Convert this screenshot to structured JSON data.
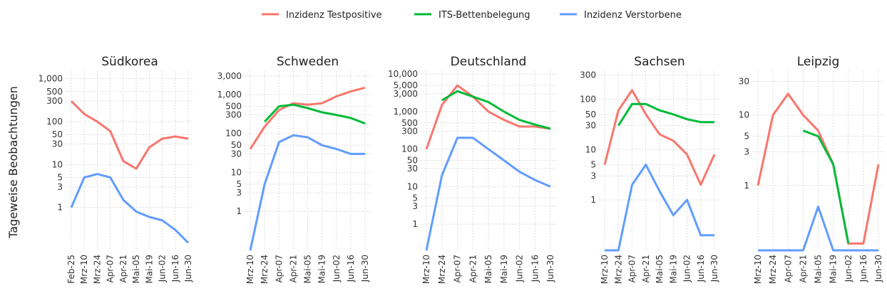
{
  "legend": [
    {
      "name": "Inzidenz Testpositive",
      "color": "#F8766D"
    },
    {
      "name": "ITS-Bettenbelegung",
      "color": "#00BA38"
    },
    {
      "name": "Inzidenz Verstorbene",
      "color": "#619CFF"
    }
  ],
  "y_label": "Tageweise Beobachtungen",
  "chart_data": [
    {
      "type": "line",
      "title": "Südkorea",
      "log_y": true,
      "grid": true,
      "categories": [
        "Feb-25",
        "Mrz-10",
        "Mrz-24",
        "Apr-07",
        "Apr-21",
        "Mai-05",
        "Mai-19",
        "Jun-02",
        "Jun-16",
        "Jun-30"
      ],
      "ylim": [
        0.1,
        1500
      ],
      "yticks": [
        {
          "value": 1000,
          "label": "1,000"
        },
        500,
        300,
        100,
        50,
        30,
        10,
        5,
        3,
        1
      ],
      "series": [
        {
          "values": [
            300,
            150,
            100,
            60,
            12,
            8,
            25,
            40,
            45,
            40
          ]
        },
        {
          "values": [
            null,
            null,
            null,
            null,
            null,
            null,
            null,
            null,
            null,
            null
          ]
        },
        {
          "values": [
            1,
            5,
            6,
            5,
            1.5,
            0.8,
            0.6,
            0.5,
            0.3,
            0.15
          ]
        }
      ]
    },
    {
      "type": "line",
      "title": "Schweden",
      "log_y": true,
      "grid": true,
      "categories": [
        "Mrz-10",
        "Mrz-24",
        "Apr-07",
        "Apr-21",
        "Mai-05",
        "Mai-19",
        "Jun-02",
        "Jun-16",
        "Jun-30"
      ],
      "ylim": [
        0.1,
        4000
      ],
      "yticks": [
        {
          "value": 3000,
          "label": "3,000"
        },
        {
          "value": 1000,
          "label": "1,000"
        },
        500,
        300,
        100,
        50,
        30,
        10,
        5,
        3,
        1
      ],
      "series": [
        {
          "values": [
            40,
            150,
            400,
            600,
            550,
            600,
            900,
            1200,
            1500
          ]
        },
        {
          "values": [
            null,
            200,
            500,
            550,
            450,
            350,
            300,
            250,
            180
          ]
        },
        {
          "values": [
            0.1,
            5,
            60,
            90,
            80,
            50,
            40,
            30,
            30
          ]
        }
      ]
    },
    {
      "type": "line",
      "title": "Deutschland",
      "log_y": true,
      "grid": true,
      "categories": [
        "Mrz-10",
        "Mrz-24",
        "Apr-07",
        "Apr-21",
        "Mai-05",
        "Mai-19",
        "Jun-02",
        "Jun-16",
        "Jun-30"
      ],
      "ylim": [
        0.2,
        12000
      ],
      "yticks": [
        {
          "value": 10000,
          "label": "10,000"
        },
        {
          "value": 5000,
          "label": "5,000"
        },
        {
          "value": 3000,
          "label": "3,000"
        },
        {
          "value": 1000,
          "label": "1,000"
        },
        500,
        300,
        100,
        50,
        30,
        10,
        5,
        3,
        1
      ],
      "series": [
        {
          "values": [
            100,
            1500,
            5000,
            2500,
            1000,
            600,
            400,
            400,
            350
          ]
        },
        {
          "values": [
            null,
            2000,
            3500,
            2500,
            1800,
            1000,
            600,
            450,
            350
          ]
        },
        {
          "values": [
            0.2,
            20,
            200,
            200,
            100,
            50,
            25,
            15,
            10
          ]
        }
      ]
    },
    {
      "type": "line",
      "title": "Sachsen",
      "log_y": true,
      "grid": true,
      "categories": [
        "Mrz-10",
        "Mrz-24",
        "Apr-07",
        "Apr-21",
        "Mai-05",
        "Mai-19",
        "Jun-02",
        "Jun-16",
        "Jun-30"
      ],
      "ylim": [
        0.1,
        360
      ],
      "yticks": [
        300,
        100,
        50,
        30,
        10,
        5,
        3,
        1
      ],
      "series": [
        {
          "values": [
            5,
            60,
            150,
            50,
            20,
            15,
            8,
            2,
            8
          ]
        },
        {
          "values": [
            null,
            30,
            80,
            80,
            60,
            50,
            40,
            35,
            35
          ]
        },
        {
          "values": [
            0.1,
            0.1,
            2,
            5,
            1.5,
            0.5,
            1,
            0.2,
            0.2
          ]
        }
      ]
    },
    {
      "type": "line",
      "title": "Leipzig",
      "log_y": true,
      "grid": true,
      "categories": [
        "Mrz-10",
        "Mrz-24",
        "Apr-07",
        "Apr-21",
        "Mai-05",
        "Mai-19",
        "Jun-02",
        "Jun-16",
        "Jun-30"
      ],
      "ylim": [
        0.12,
        42
      ],
      "yticks": [
        30,
        10,
        5,
        3,
        1
      ],
      "series": [
        {
          "values": [
            1,
            10,
            20,
            10,
            6,
            2,
            0.15,
            0.15,
            2
          ]
        },
        {
          "values": [
            null,
            null,
            null,
            6,
            5,
            2,
            0.15,
            null,
            null
          ]
        },
        {
          "values": [
            0.12,
            0.12,
            0.12,
            0.12,
            0.5,
            0.12,
            0.12,
            0.12,
            0.12
          ]
        }
      ]
    }
  ]
}
